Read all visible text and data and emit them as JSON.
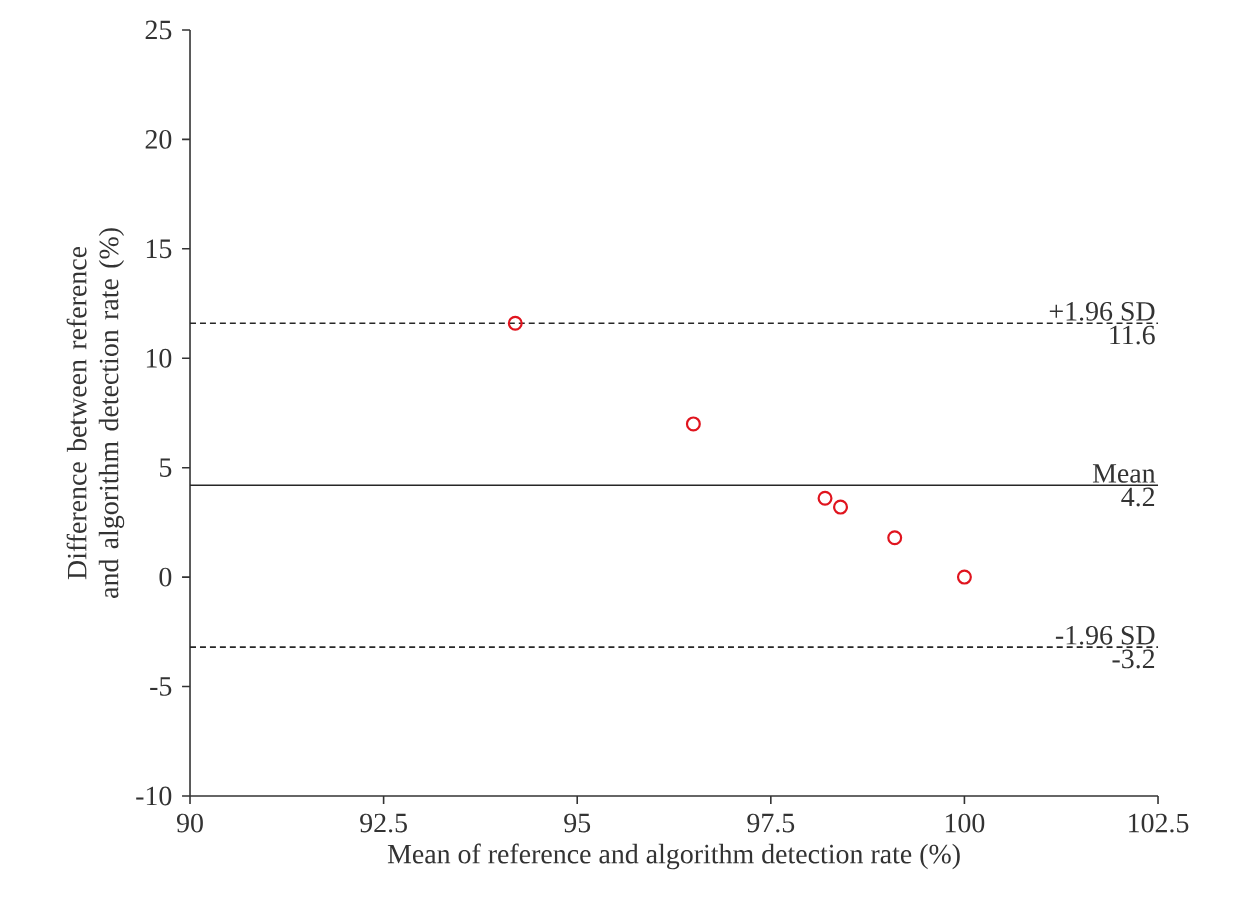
{
  "chart_data": {
    "type": "scatter",
    "xlabel": "Mean of reference and algorithm detection rate (%)",
    "ylabel": "Difference between reference and algorithm detection rate (%)",
    "x": [
      94.2,
      96.5,
      98.2,
      98.4,
      99.1,
      100
    ],
    "series": [
      {
        "color": "#e0141e",
        "values": [
          11.6,
          7.0,
          3.6,
          3.2,
          1.8,
          0
        ]
      }
    ],
    "marker": "circle",
    "xlim": [
      90,
      102.5
    ],
    "ylim": [
      -10,
      25
    ],
    "xticks": [
      90,
      92.5,
      95,
      97.5,
      100,
      102.5
    ],
    "yticks": [
      -10,
      -5,
      0,
      5,
      10,
      15,
      20,
      25
    ],
    "ref_lines": [
      {
        "axis": "y",
        "value": 11.6,
        "label": "+1.96 SD",
        "line_style": "dashed"
      },
      {
        "axis": "y",
        "value": 4.2,
        "label": "Mean",
        "line_style": "solid"
      },
      {
        "axis": "y",
        "value": -3.2,
        "label": "-1.96 SD",
        "line_style": "dashed"
      }
    ],
    "annotations": [
      {
        "text": "11.6",
        "y": 11.6
      },
      {
        "text": "4.2",
        "y": 4.2
      },
      {
        "text": "-3.2",
        "y": -3.2
      }
    ]
  }
}
